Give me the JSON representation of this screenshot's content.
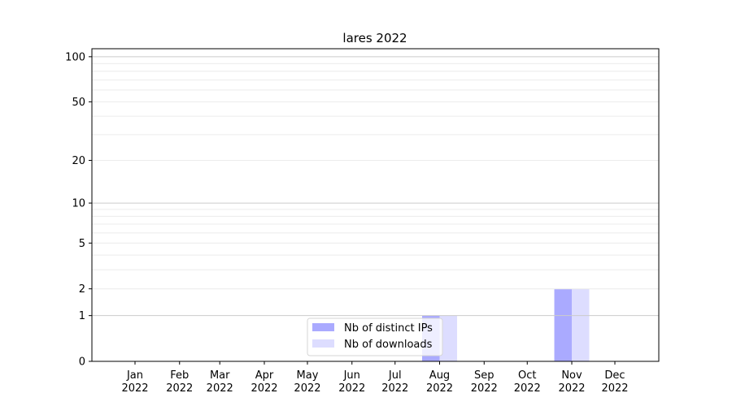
{
  "chart_data": {
    "type": "bar",
    "title": "lares 2022",
    "xlabel": "",
    "ylabel": "",
    "yscale": "log(1+y)",
    "ylim": [
      0,
      113
    ],
    "yticks": [
      0,
      1,
      2,
      5,
      10,
      20,
      50,
      100
    ],
    "ytick_labels": [
      "0",
      "1",
      "2",
      "5",
      "10",
      "20",
      "50",
      "100"
    ],
    "grid": true,
    "legend_position": "bottom-center",
    "categories": [
      "Jan\n2022",
      "Feb\n2022",
      "Mar\n2022",
      "Apr\n2022",
      "May\n2022",
      "Jun\n2022",
      "Jul\n2022",
      "Aug\n2022",
      "Sep\n2022",
      "Oct\n2022",
      "Nov\n2022",
      "Dec\n2022"
    ],
    "series": [
      {
        "name": "Nb of distinct IPs",
        "color": "#aaaaff",
        "values": [
          0,
          0,
          0,
          0,
          0,
          0,
          0,
          1,
          0,
          0,
          2,
          0
        ]
      },
      {
        "name": "Nb of downloads",
        "color": "#ddddff",
        "values": [
          0,
          0,
          0,
          0,
          0,
          0,
          0,
          1,
          0,
          0,
          2,
          0
        ]
      }
    ]
  }
}
